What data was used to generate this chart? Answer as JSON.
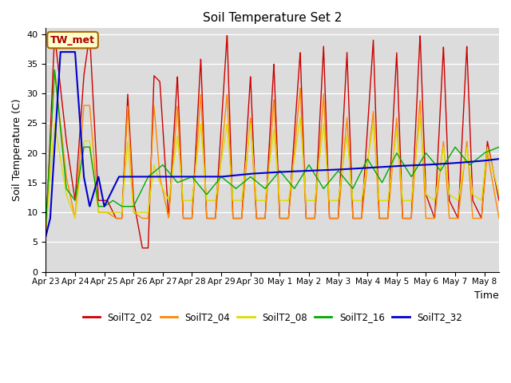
{
  "title": "Soil Temperature Set 2",
  "xlabel": "Time",
  "ylabel": "Soil Temperature (C)",
  "ylim": [
    0,
    41
  ],
  "xlim_days": [
    0,
    15.5
  ],
  "bg_color": "#dcdcdc",
  "fig_bg": "#ffffff",
  "annotation": "TW_met",
  "annotation_color": "#aa0000",
  "annotation_bg": "#ffffcc",
  "annotation_border": "#aa6600",
  "series_colors": {
    "SoilT2_02": "#cc0000",
    "SoilT2_04": "#ff8800",
    "SoilT2_08": "#dddd00",
    "SoilT2_16": "#00aa00",
    "SoilT2_32": "#0000cc"
  },
  "legend_labels": [
    "SoilT2_02",
    "SoilT2_04",
    "SoilT2_08",
    "SoilT2_16",
    "SoilT2_32"
  ],
  "tick_labels": [
    "Apr 23",
    "Apr 24",
    "Apr 25",
    "Apr 26",
    "Apr 27",
    "Apr 28",
    "Apr 29",
    "Apr 30",
    "May 1",
    "May 2",
    "May 3",
    "May 4",
    "May 5",
    "May 6",
    "May 7",
    "May 8"
  ],
  "tick_positions": [
    0,
    1,
    2,
    3,
    4,
    5,
    6,
    7,
    8,
    9,
    10,
    11,
    12,
    13,
    14,
    15
  ],
  "yticks": [
    0,
    5,
    10,
    15,
    20,
    25,
    30,
    35,
    40
  ]
}
